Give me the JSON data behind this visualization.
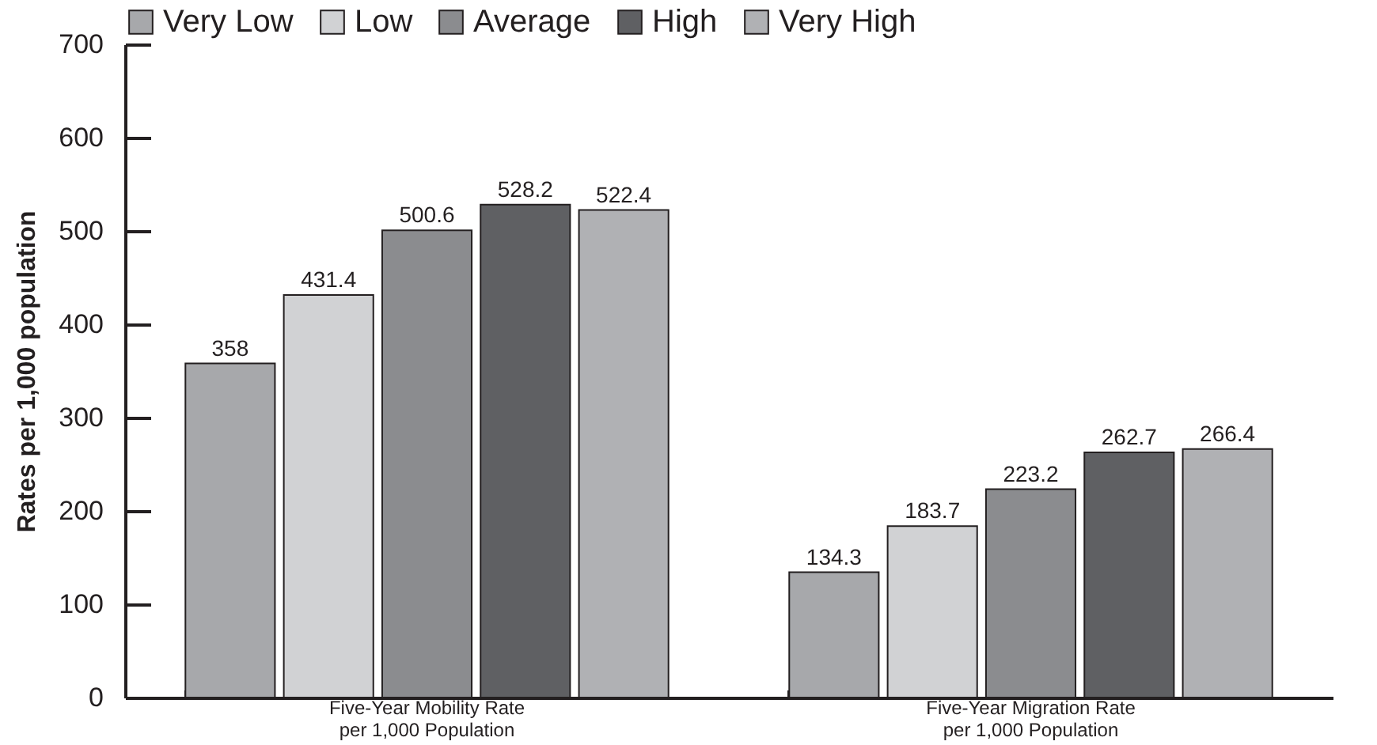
{
  "chart_data": {
    "type": "bar",
    "ylabel": "Rates per 1,000 population",
    "categories": [
      "Five-Year Mobility Rate\nper 1,000 Population",
      "Five-Year Migration Rate\nper 1,000 Population"
    ],
    "series": [
      {
        "name": "Very Low",
        "color": "#a7a8ab",
        "values": [
          358,
          134.3
        ]
      },
      {
        "name": "Low",
        "color": "#d1d2d4",
        "values": [
          431.4,
          183.7
        ]
      },
      {
        "name": "Average",
        "color": "#8b8c8f",
        "values": [
          500.6,
          223.2
        ]
      },
      {
        "name": "High",
        "color": "#5f6063",
        "values": [
          528.2,
          262.7
        ]
      },
      {
        "name": "Very High",
        "color": "#b0b1b4",
        "values": [
          522.4,
          266.4
        ]
      }
    ],
    "ylim": [
      0,
      700
    ],
    "yticks": [
      0,
      100,
      200,
      300,
      400,
      500,
      600,
      700
    ],
    "grid": false,
    "legend": "top",
    "data_labels": true
  }
}
